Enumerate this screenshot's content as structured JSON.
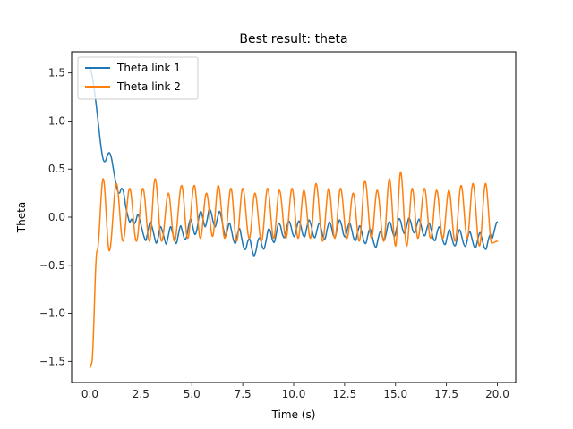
{
  "chart_data": {
    "type": "line",
    "title": "Best result: theta",
    "xlabel": "Time (s)",
    "ylabel": "Theta",
    "xlim": [
      -0.9,
      20.9
    ],
    "ylim": [
      -1.72,
      1.72
    ],
    "xticks": [
      0.0,
      2.5,
      5.0,
      7.5,
      10.0,
      12.5,
      15.0,
      17.5,
      20.0
    ],
    "xtick_labels": [
      "0.0",
      "2.5",
      "5.0",
      "7.5",
      "10.0",
      "12.5",
      "15.0",
      "17.5",
      "20.0"
    ],
    "yticks": [
      -1.5,
      -1.0,
      -0.5,
      0.0,
      0.5,
      1.0,
      1.5
    ],
    "ytick_labels": [
      "−1.5",
      "−1.0",
      "−0.5",
      "0.0",
      "0.5",
      "1.0",
      "1.5"
    ],
    "grid": false,
    "legend_position": "upper-left",
    "series": [
      {
        "name": "Theta link 1",
        "color": "#1f77b4",
        "points": [
          [
            0.0,
            1.57
          ],
          [
            0.15,
            1.42
          ],
          [
            0.3,
            1.18
          ],
          [
            0.45,
            0.9
          ],
          [
            0.55,
            0.72
          ],
          [
            0.65,
            0.6
          ],
          [
            0.75,
            0.58
          ],
          [
            0.85,
            0.64
          ],
          [
            0.95,
            0.67
          ],
          [
            1.05,
            0.62
          ],
          [
            1.15,
            0.5
          ],
          [
            1.25,
            0.38
          ],
          [
            1.35,
            0.28
          ],
          [
            1.45,
            0.25
          ],
          [
            1.55,
            0.3
          ],
          [
            1.65,
            0.26
          ],
          [
            1.75,
            0.12
          ],
          [
            1.85,
            0.02
          ],
          [
            1.95,
            -0.05
          ],
          [
            2.05,
            -0.02
          ],
          [
            2.15,
            -0.07
          ],
          [
            2.25,
            -0.04
          ],
          [
            2.35,
            0.03
          ],
          [
            2.45,
            -0.03
          ],
          [
            2.55,
            -0.12
          ],
          [
            2.65,
            -0.2
          ],
          [
            2.75,
            -0.24
          ],
          [
            2.85,
            -0.14
          ],
          [
            2.95,
            -0.05
          ],
          [
            3.05,
            -0.1
          ],
          [
            3.15,
            -0.19
          ],
          [
            3.25,
            -0.27
          ],
          [
            3.35,
            -0.21
          ],
          [
            3.45,
            -0.1
          ],
          [
            3.55,
            -0.14
          ],
          [
            3.65,
            -0.22
          ],
          [
            3.75,
            -0.28
          ],
          [
            3.85,
            -0.19
          ],
          [
            3.95,
            -0.1
          ],
          [
            4.05,
            -0.16
          ],
          [
            4.15,
            -0.24
          ],
          [
            4.25,
            -0.27
          ],
          [
            4.35,
            -0.17
          ],
          [
            4.45,
            -0.09
          ],
          [
            4.55,
            -0.16
          ],
          [
            4.65,
            -0.23
          ],
          [
            4.75,
            -0.2
          ],
          [
            4.85,
            -0.08
          ],
          [
            4.95,
            -0.02
          ],
          [
            5.05,
            -0.1
          ],
          [
            5.15,
            -0.18
          ],
          [
            5.25,
            -0.13
          ],
          [
            5.35,
            0.0
          ],
          [
            5.45,
            0.06
          ],
          [
            5.55,
            -0.02
          ],
          [
            5.65,
            -0.1
          ],
          [
            5.75,
            -0.03
          ],
          [
            5.85,
            0.08
          ],
          [
            5.95,
            0.05
          ],
          [
            6.05,
            -0.05
          ],
          [
            6.15,
            -0.1
          ],
          [
            6.25,
            -0.02
          ],
          [
            6.35,
            0.06
          ],
          [
            6.45,
            0.0
          ],
          [
            6.55,
            -0.12
          ],
          [
            6.65,
            -0.2
          ],
          [
            6.75,
            -0.13
          ],
          [
            6.85,
            -0.06
          ],
          [
            6.95,
            -0.14
          ],
          [
            7.05,
            -0.24
          ],
          [
            7.15,
            -0.27
          ],
          [
            7.25,
            -0.17
          ],
          [
            7.35,
            -0.12
          ],
          [
            7.45,
            -0.22
          ],
          [
            7.55,
            -0.32
          ],
          [
            7.65,
            -0.33
          ],
          [
            7.75,
            -0.25
          ],
          [
            7.85,
            -0.23
          ],
          [
            7.95,
            -0.33
          ],
          [
            8.05,
            -0.4
          ],
          [
            8.15,
            -0.35
          ],
          [
            8.25,
            -0.24
          ],
          [
            8.35,
            -0.22
          ],
          [
            8.45,
            -0.3
          ],
          [
            8.55,
            -0.33
          ],
          [
            8.65,
            -0.24
          ],
          [
            8.75,
            -0.13
          ],
          [
            8.85,
            -0.14
          ],
          [
            8.95,
            -0.23
          ],
          [
            9.05,
            -0.26
          ],
          [
            9.15,
            -0.17
          ],
          [
            9.25,
            -0.07
          ],
          [
            9.35,
            -0.09
          ],
          [
            9.45,
            -0.18
          ],
          [
            9.55,
            -0.21
          ],
          [
            9.65,
            -0.12
          ],
          [
            9.75,
            -0.04
          ],
          [
            9.85,
            -0.08
          ],
          [
            9.95,
            -0.17
          ],
          [
            10.05,
            -0.2
          ],
          [
            10.15,
            -0.11
          ],
          [
            10.25,
            -0.04
          ],
          [
            10.35,
            -0.09
          ],
          [
            10.45,
            -0.18
          ],
          [
            10.55,
            -0.2
          ],
          [
            10.65,
            -0.1
          ],
          [
            10.75,
            -0.03
          ],
          [
            10.85,
            -0.08
          ],
          [
            10.95,
            -0.18
          ],
          [
            11.05,
            -0.21
          ],
          [
            11.15,
            -0.13
          ],
          [
            11.25,
            -0.06
          ],
          [
            11.35,
            -0.12
          ],
          [
            11.45,
            -0.21
          ],
          [
            11.55,
            -0.22
          ],
          [
            11.65,
            -0.12
          ],
          [
            11.75,
            -0.05
          ],
          [
            11.85,
            -0.1
          ],
          [
            11.95,
            -0.19
          ],
          [
            12.05,
            -0.2
          ],
          [
            12.15,
            -0.1
          ],
          [
            12.25,
            -0.03
          ],
          [
            12.35,
            -0.08
          ],
          [
            12.45,
            -0.18
          ],
          [
            12.55,
            -0.2
          ],
          [
            12.65,
            -0.11
          ],
          [
            12.75,
            -0.06
          ],
          [
            12.85,
            -0.13
          ],
          [
            12.95,
            -0.22
          ],
          [
            13.05,
            -0.24
          ],
          [
            13.15,
            -0.15
          ],
          [
            13.25,
            -0.09
          ],
          [
            13.35,
            -0.16
          ],
          [
            13.45,
            -0.25
          ],
          [
            13.55,
            -0.27
          ],
          [
            13.65,
            -0.18
          ],
          [
            13.75,
            -0.12
          ],
          [
            13.85,
            -0.19
          ],
          [
            13.95,
            -0.28
          ],
          [
            14.05,
            -0.31
          ],
          [
            14.15,
            -0.22
          ],
          [
            14.25,
            -0.15
          ],
          [
            14.35,
            -0.2
          ],
          [
            14.45,
            -0.24
          ],
          [
            14.55,
            -0.16
          ],
          [
            14.65,
            -0.06
          ],
          [
            14.75,
            -0.06
          ],
          [
            14.85,
            -0.15
          ],
          [
            14.95,
            -0.2
          ],
          [
            15.05,
            -0.12
          ],
          [
            15.15,
            -0.02
          ],
          [
            15.25,
            -0.04
          ],
          [
            15.35,
            -0.13
          ],
          [
            15.45,
            -0.17
          ],
          [
            15.55,
            -0.09
          ],
          [
            15.65,
            -0.01
          ],
          [
            15.75,
            -0.05
          ],
          [
            15.85,
            -0.14
          ],
          [
            15.95,
            -0.16
          ],
          [
            16.05,
            -0.08
          ],
          [
            16.15,
            -0.02
          ],
          [
            16.25,
            -0.08
          ],
          [
            16.35,
            -0.17
          ],
          [
            16.45,
            -0.19
          ],
          [
            16.55,
            -0.11
          ],
          [
            16.65,
            -0.06
          ],
          [
            16.75,
            -0.13
          ],
          [
            16.85,
            -0.22
          ],
          [
            16.95,
            -0.24
          ],
          [
            17.05,
            -0.15
          ],
          [
            17.15,
            -0.1
          ],
          [
            17.25,
            -0.17
          ],
          [
            17.35,
            -0.26
          ],
          [
            17.45,
            -0.28
          ],
          [
            17.55,
            -0.19
          ],
          [
            17.65,
            -0.13
          ],
          [
            17.75,
            -0.2
          ],
          [
            17.85,
            -0.28
          ],
          [
            17.95,
            -0.29
          ],
          [
            18.05,
            -0.19
          ],
          [
            18.15,
            -0.13
          ],
          [
            18.25,
            -0.2
          ],
          [
            18.35,
            -0.28
          ],
          [
            18.45,
            -0.3
          ],
          [
            18.55,
            -0.21
          ],
          [
            18.65,
            -0.15
          ],
          [
            18.75,
            -0.22
          ],
          [
            18.85,
            -0.3
          ],
          [
            18.95,
            -0.31
          ],
          [
            19.05,
            -0.22
          ],
          [
            19.15,
            -0.16
          ],
          [
            19.25,
            -0.23
          ],
          [
            19.35,
            -0.31
          ],
          [
            19.45,
            -0.33
          ],
          [
            19.55,
            -0.24
          ],
          [
            19.65,
            -0.18
          ],
          [
            19.75,
            -0.22
          ],
          [
            19.85,
            -0.14
          ],
          [
            19.95,
            -0.06
          ],
          [
            20.0,
            -0.05
          ]
        ]
      },
      {
        "name": "Theta link 2",
        "color": "#ff7f0e",
        "wave": {
          "start": [
            0.0,
            -1.57
          ],
          "dip_end_x": 0.08,
          "dip_end_y": -1.52,
          "extrema": [
            [
              0.35,
              -0.35
            ],
            [
              0.65,
              0.4
            ],
            [
              0.95,
              -0.35
            ],
            [
              1.3,
              0.35
            ],
            [
              1.62,
              -0.25
            ],
            [
              1.95,
              0.3
            ],
            [
              2.28,
              -0.25
            ],
            [
              2.6,
              0.3
            ],
            [
              2.92,
              -0.25
            ],
            [
              3.2,
              0.4
            ],
            [
              3.52,
              -0.25
            ],
            [
              3.85,
              0.25
            ],
            [
              4.15,
              -0.25
            ],
            [
              4.5,
              0.33
            ],
            [
              4.8,
              -0.22
            ],
            [
              5.12,
              0.33
            ],
            [
              5.42,
              -0.22
            ],
            [
              5.72,
              0.25
            ],
            [
              6.02,
              -0.2
            ],
            [
              6.3,
              0.33
            ],
            [
              6.62,
              -0.22
            ],
            [
              6.92,
              0.3
            ],
            [
              7.2,
              -0.25
            ],
            [
              7.5,
              0.3
            ],
            [
              7.82,
              -0.22
            ],
            [
              8.1,
              0.25
            ],
            [
              8.42,
              -0.25
            ],
            [
              8.72,
              0.3
            ],
            [
              9.02,
              -0.22
            ],
            [
              9.3,
              0.28
            ],
            [
              9.62,
              -0.22
            ],
            [
              9.92,
              0.3
            ],
            [
              10.22,
              -0.22
            ],
            [
              10.5,
              0.28
            ],
            [
              10.82,
              -0.22
            ],
            [
              11.1,
              0.35
            ],
            [
              11.42,
              -0.25
            ],
            [
              11.72,
              0.3
            ],
            [
              12.02,
              -0.22
            ],
            [
              12.3,
              0.3
            ],
            [
              12.62,
              -0.22
            ],
            [
              12.92,
              0.25
            ],
            [
              13.22,
              -0.25
            ],
            [
              13.5,
              0.38
            ],
            [
              13.82,
              -0.22
            ],
            [
              14.1,
              0.28
            ],
            [
              14.42,
              -0.25
            ],
            [
              14.7,
              0.4
            ],
            [
              15.0,
              -0.3
            ],
            [
              15.25,
              0.47
            ],
            [
              15.55,
              -0.3
            ],
            [
              15.82,
              0.3
            ],
            [
              16.1,
              -0.22
            ],
            [
              16.42,
              0.3
            ],
            [
              16.72,
              -0.22
            ],
            [
              17.02,
              0.28
            ],
            [
              17.32,
              -0.22
            ],
            [
              17.62,
              0.28
            ],
            [
              17.92,
              -0.25
            ],
            [
              18.22,
              0.33
            ],
            [
              18.52,
              -0.22
            ],
            [
              18.8,
              0.35
            ],
            [
              19.12,
              -0.3
            ],
            [
              19.42,
              0.35
            ],
            [
              19.72,
              -0.27
            ],
            [
              20.0,
              -0.25
            ]
          ]
        }
      }
    ]
  }
}
